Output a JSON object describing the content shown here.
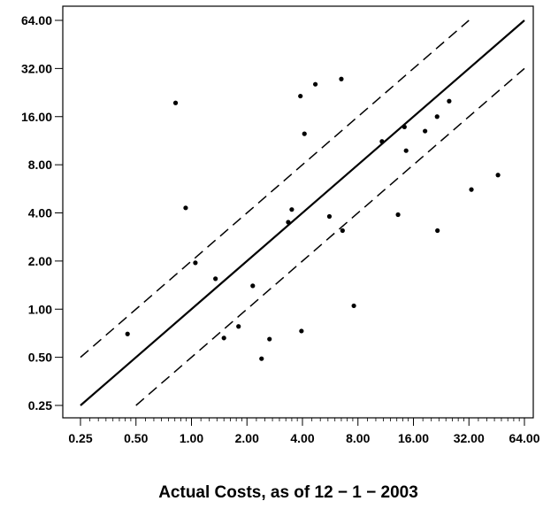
{
  "chart_data": {
    "type": "scatter",
    "title": "",
    "xlabel": "Actual Costs, as of 12 − 1 − 2003",
    "ylabel": "",
    "x_scale": "log2",
    "y_scale": "log2",
    "xlim": [
      0.25,
      64.0
    ],
    "ylim": [
      0.25,
      64.0
    ],
    "x_ticks": [
      "0.25",
      "0.50",
      "1.00",
      "2.00",
      "4.00",
      "8.00",
      "16.00",
      "32.00",
      "64.00"
    ],
    "y_ticks": [
      "0.25",
      "0.50",
      "1.00",
      "2.00",
      "4.00",
      "8.00",
      "16.00",
      "32.00",
      "64.00"
    ],
    "grid": false,
    "points": [
      {
        "x": 0.45,
        "y": 0.7
      },
      {
        "x": 0.82,
        "y": 19.5
      },
      {
        "x": 0.93,
        "y": 4.3
      },
      {
        "x": 1.05,
        "y": 1.95
      },
      {
        "x": 1.35,
        "y": 1.55
      },
      {
        "x": 1.5,
        "y": 0.66
      },
      {
        "x": 1.8,
        "y": 0.78
      },
      {
        "x": 2.15,
        "y": 1.4
      },
      {
        "x": 2.4,
        "y": 0.49
      },
      {
        "x": 2.65,
        "y": 0.65
      },
      {
        "x": 3.35,
        "y": 3.5
      },
      {
        "x": 3.5,
        "y": 4.2
      },
      {
        "x": 3.9,
        "y": 21.5
      },
      {
        "x": 3.95,
        "y": 0.73
      },
      {
        "x": 4.1,
        "y": 12.5
      },
      {
        "x": 4.7,
        "y": 25.5
      },
      {
        "x": 5.6,
        "y": 3.8
      },
      {
        "x": 6.5,
        "y": 27.5
      },
      {
        "x": 6.6,
        "y": 3.1
      },
      {
        "x": 7.6,
        "y": 1.05
      },
      {
        "x": 10.8,
        "y": 11.2
      },
      {
        "x": 13.2,
        "y": 3.9
      },
      {
        "x": 14.3,
        "y": 13.8
      },
      {
        "x": 14.6,
        "y": 9.8
      },
      {
        "x": 18.5,
        "y": 13.0
      },
      {
        "x": 21.5,
        "y": 16.0
      },
      {
        "x": 21.6,
        "y": 3.1
      },
      {
        "x": 25.0,
        "y": 20.0
      },
      {
        "x": 33.0,
        "y": 5.6
      },
      {
        "x": 46.0,
        "y": 6.9
      }
    ],
    "reference_lines": [
      {
        "style": "solid",
        "relation": "y = x",
        "x_range": [
          0.25,
          64.0
        ]
      },
      {
        "style": "dashed",
        "relation": "y = 2x",
        "x_range": [
          0.25,
          32.0
        ]
      },
      {
        "style": "dashed",
        "relation": "y = 0.5x",
        "x_range": [
          0.5,
          64.0
        ]
      }
    ]
  }
}
